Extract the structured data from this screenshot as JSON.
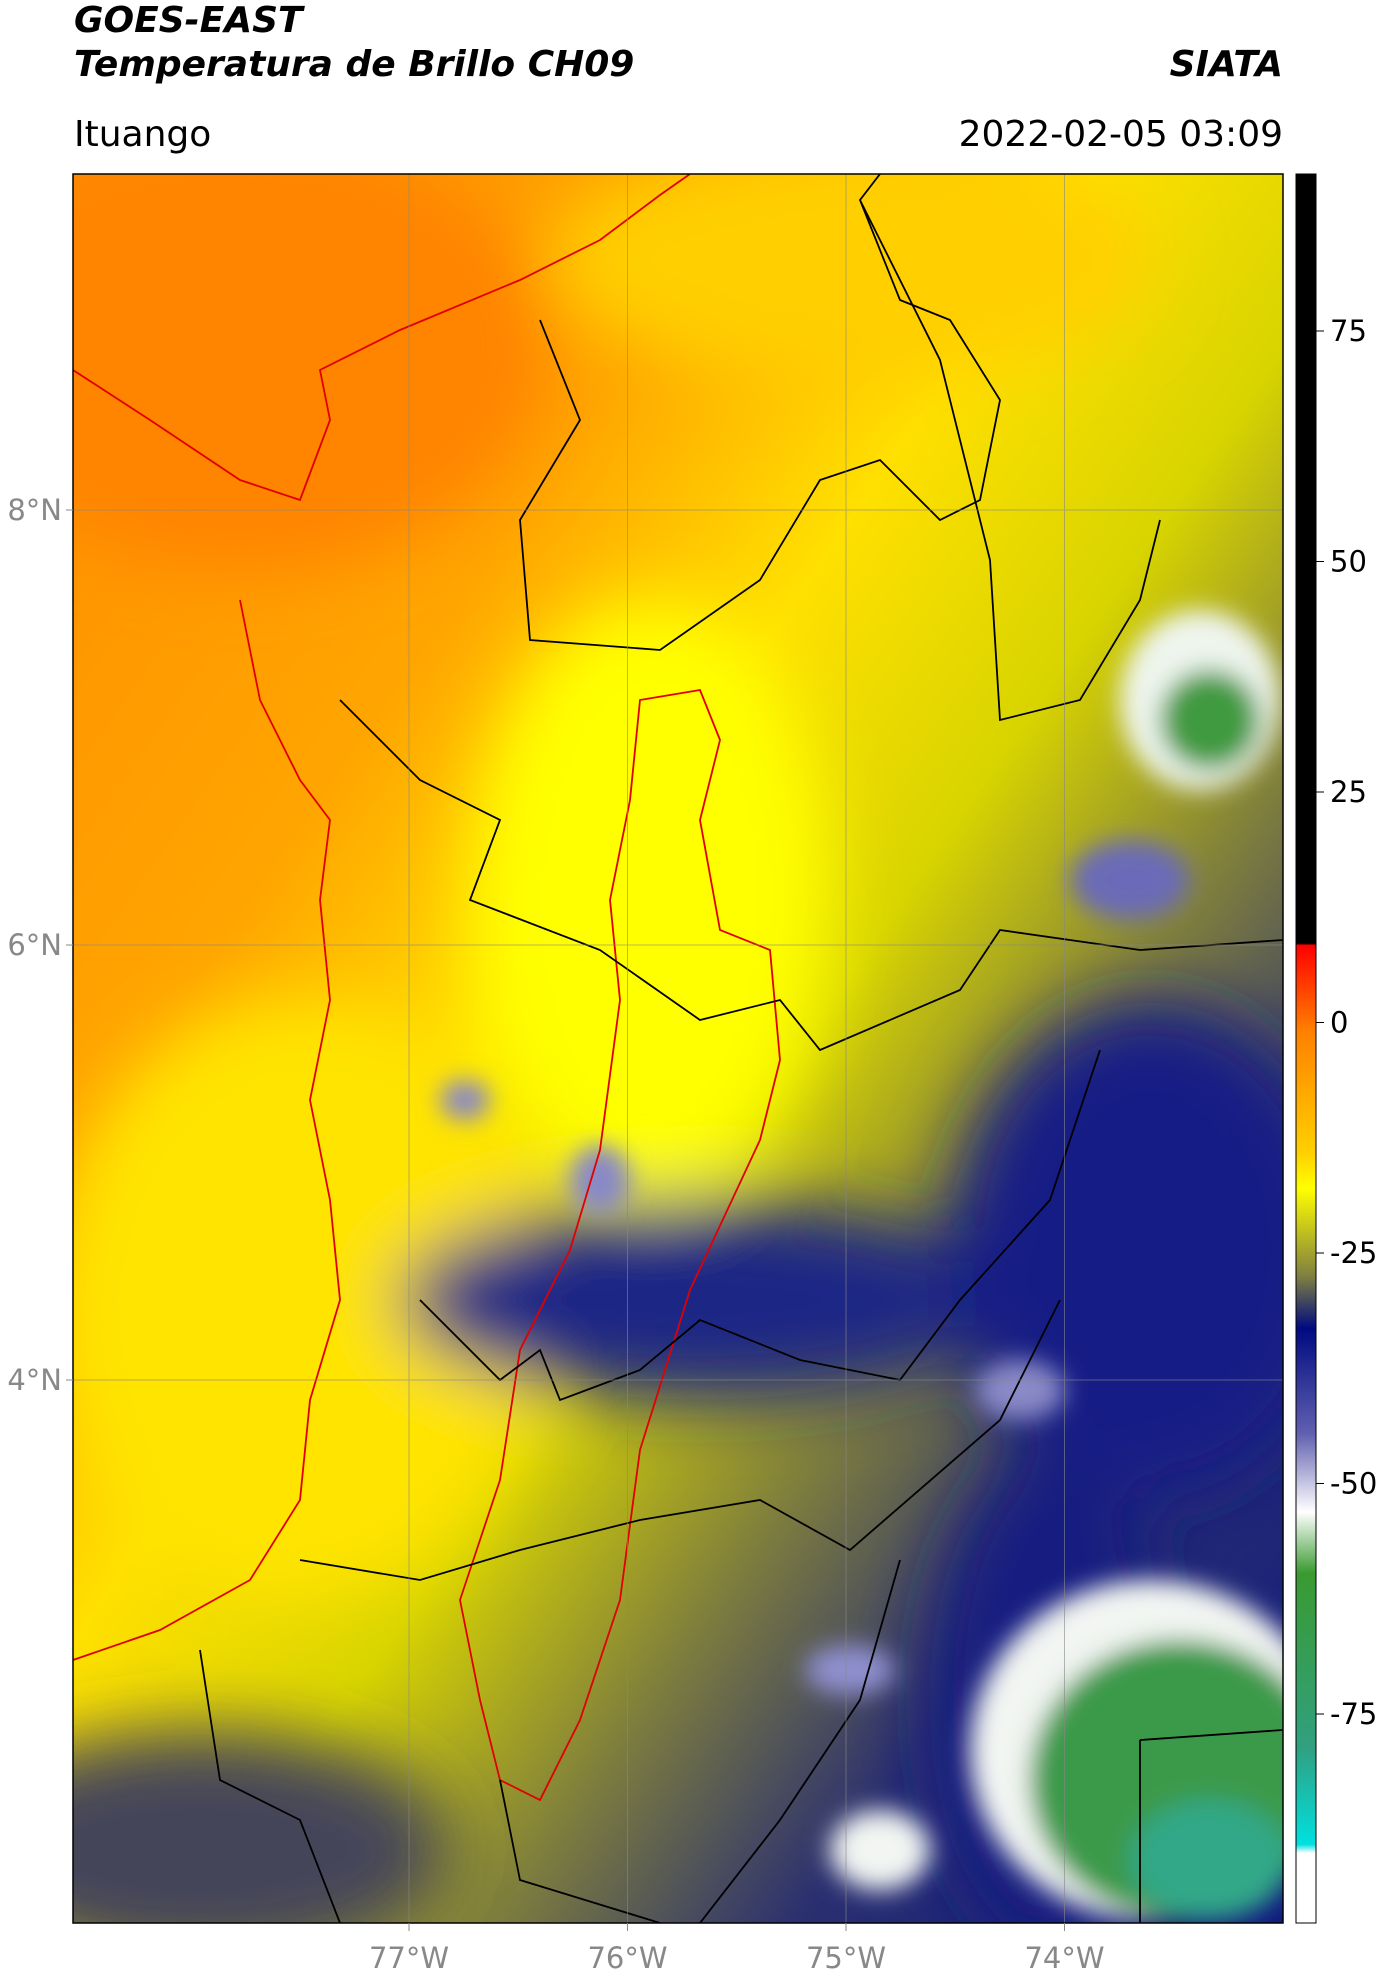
{
  "header": {
    "title": "GOES-EAST",
    "subtitle": "Temperatura de Brillo CH09",
    "source": "SIATA",
    "location": "Ituango",
    "datetime": "2022-02-05 03:09"
  },
  "map": {
    "lat_ticks": [
      "8°N",
      "6°N",
      "4°N"
    ],
    "lon_ticks": [
      "77°W",
      "76°W",
      "75°W",
      "74°W"
    ]
  },
  "colorbar": {
    "ticks": [
      75,
      50,
      25,
      0,
      -25,
      -50,
      -75
    ]
  }
}
